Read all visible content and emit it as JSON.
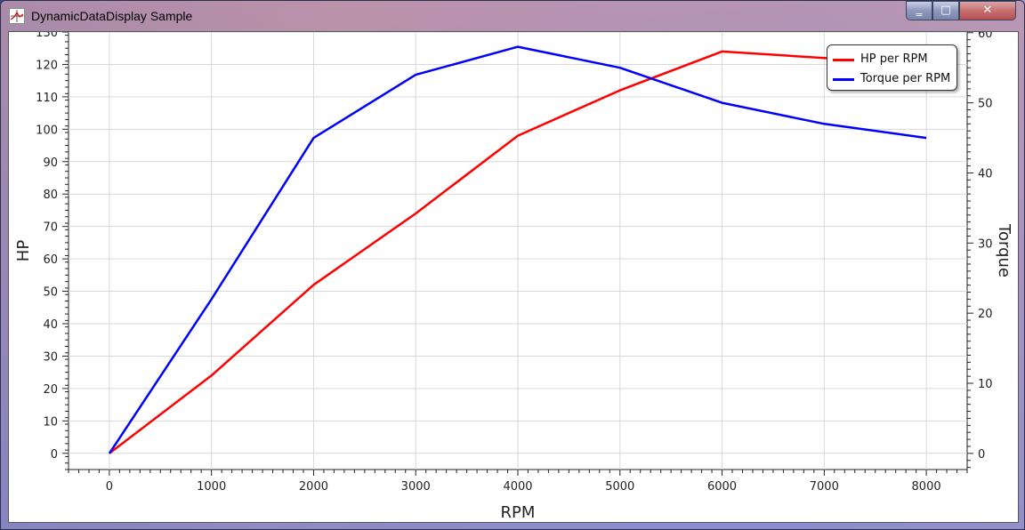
{
  "window": {
    "title": "DynamicDataDisplay Sample",
    "buttons": {
      "minimize": "‗",
      "maximize": "▢",
      "close": "✕"
    },
    "icons": {
      "app": "chart-app-icon"
    }
  },
  "chart_data": {
    "type": "line",
    "title": "",
    "xlabel": "RPM",
    "ylabel": "HP",
    "y2label": "Torque",
    "x": [
      0,
      1000,
      2000,
      3000,
      4000,
      5000,
      6000,
      7000,
      8000
    ],
    "xlim": [
      -400,
      8400
    ],
    "ylim": [
      -5,
      130
    ],
    "y2lim": [
      -2.3,
      60.1
    ],
    "xticks": [
      "0",
      "1000",
      "2000",
      "3000",
      "4000",
      "5000",
      "6000",
      "7000",
      "8000"
    ],
    "yticks": [
      "0",
      "10",
      "20",
      "30",
      "40",
      "50",
      "60",
      "70",
      "80",
      "90",
      "100",
      "110",
      "120",
      "130"
    ],
    "y2ticks": [
      "0",
      "10",
      "20",
      "30",
      "40",
      "50",
      "60"
    ],
    "grid": true,
    "legend_position": "top-right",
    "series": [
      {
        "name": "HP per RPM",
        "axis": "left",
        "color": "#ff0000",
        "values": [
          0,
          24,
          52,
          74,
          98,
          112,
          124,
          122,
          120
        ]
      },
      {
        "name": "Torque per RPM",
        "axis": "right",
        "color": "#0000ff",
        "values": [
          0,
          22,
          45,
          54,
          58,
          55,
          50,
          47,
          45
        ]
      }
    ]
  }
}
